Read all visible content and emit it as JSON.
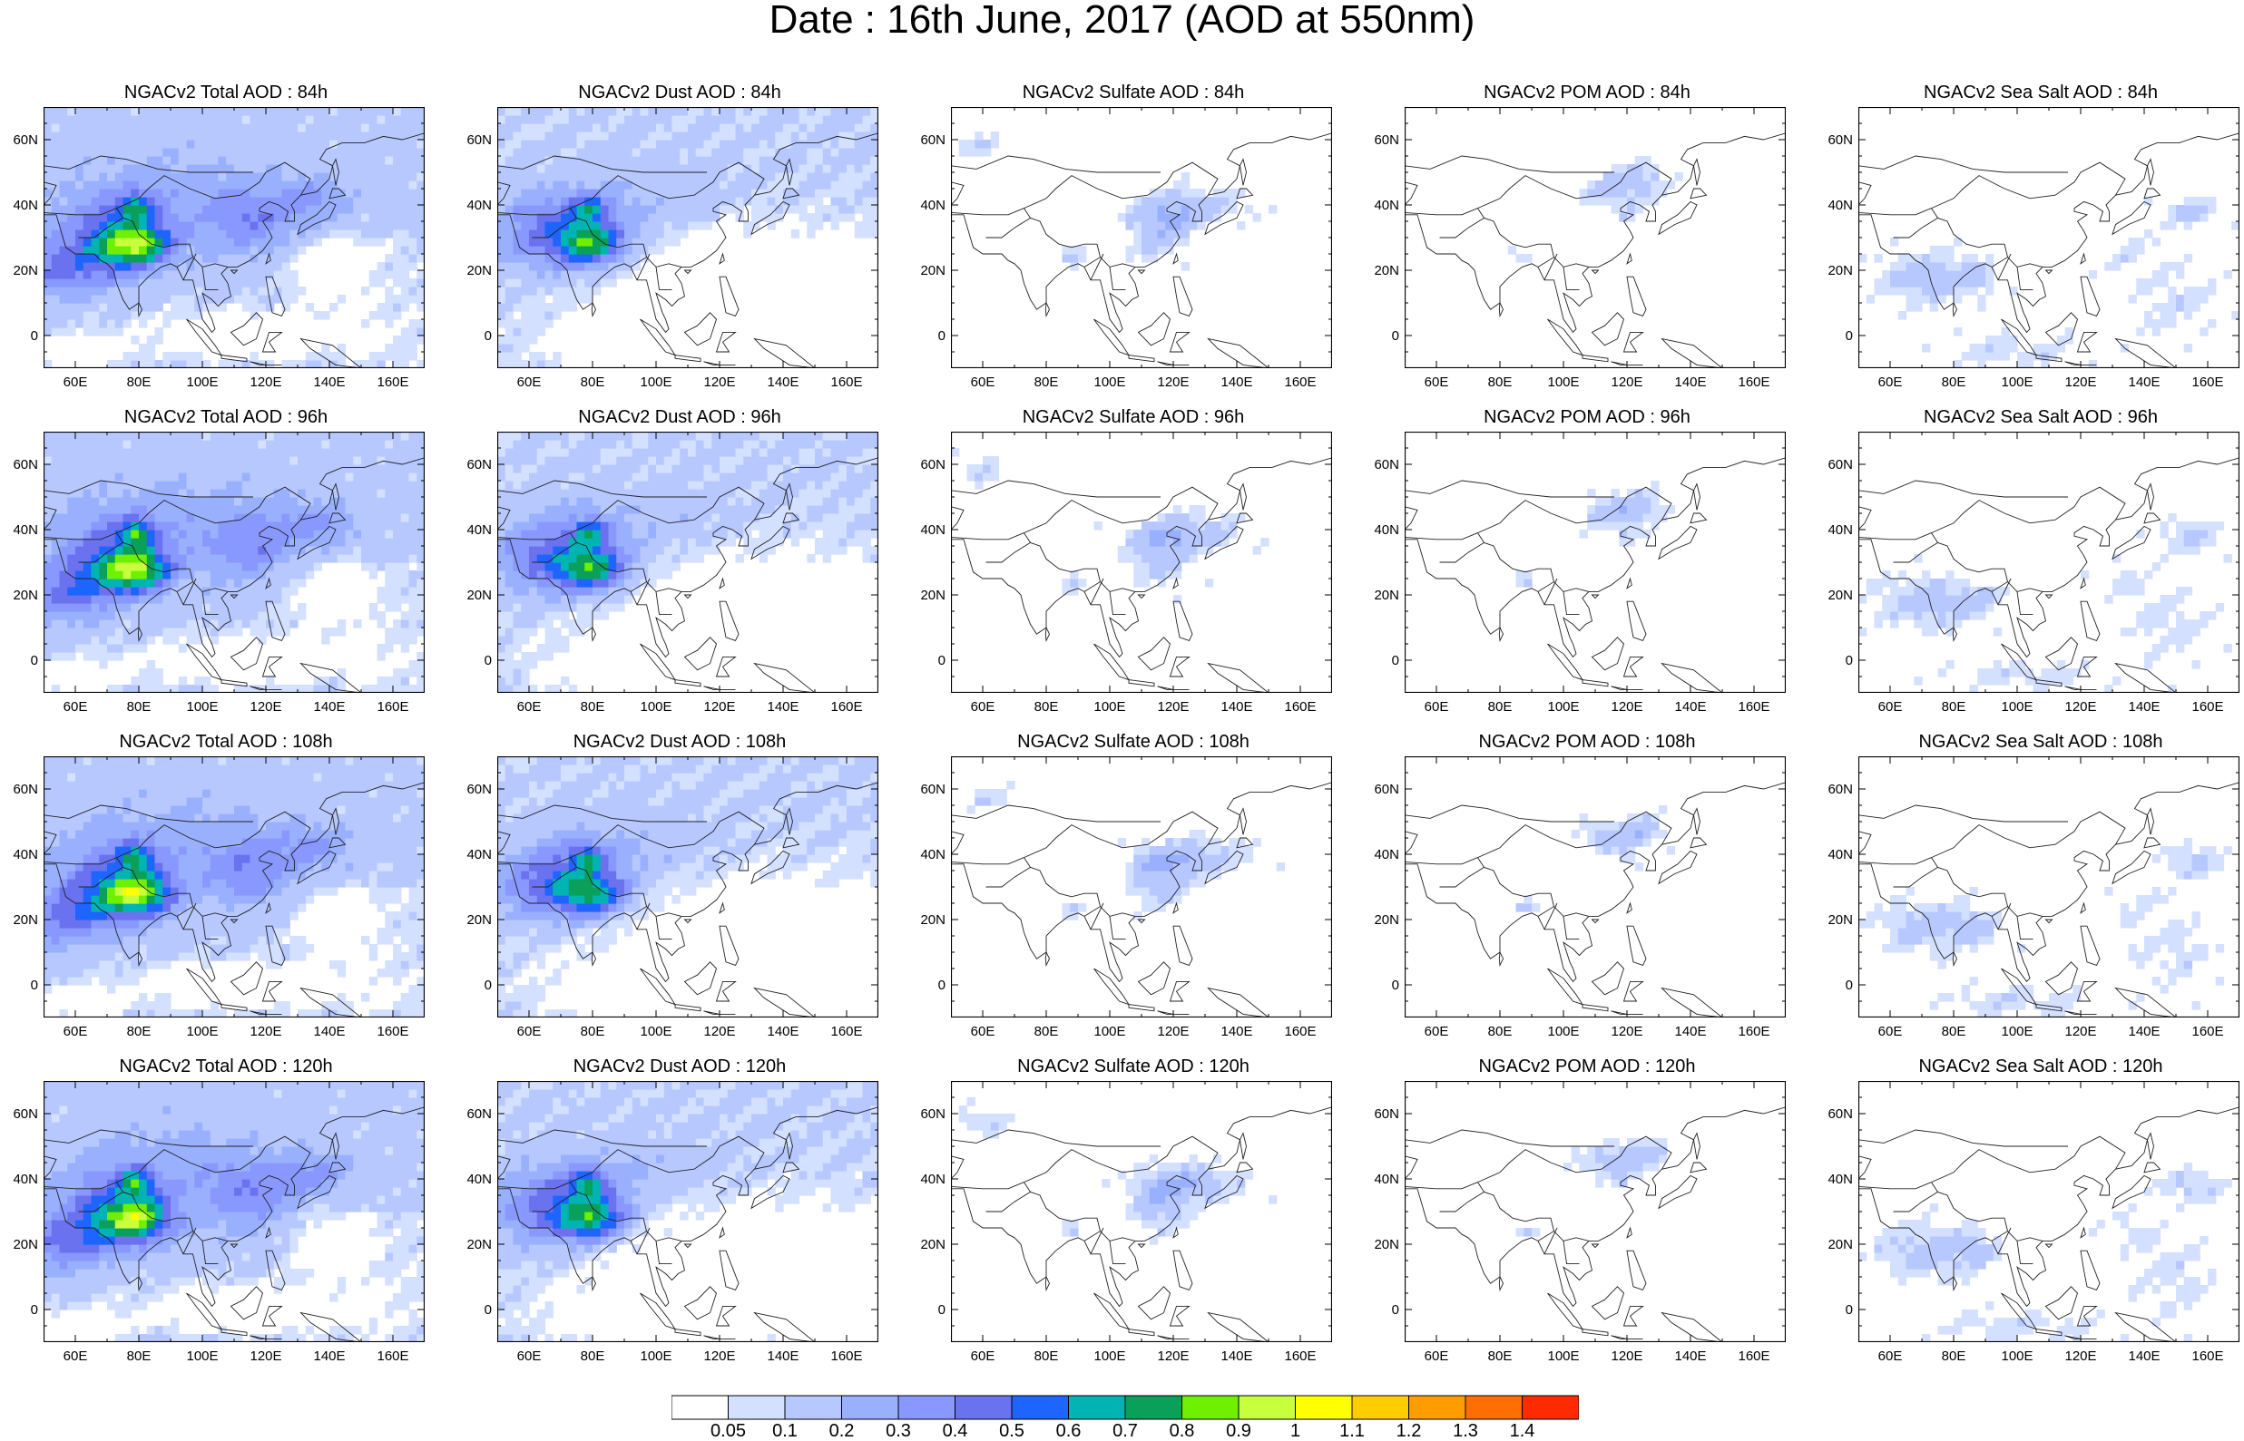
{
  "title": "Date : 16th June, 2017 (AOD at 550nm)",
  "lat_ticks": [
    "60N",
    "40N",
    "20N",
    "0"
  ],
  "lon_ticks": [
    "60E",
    "80E",
    "100E",
    "120E",
    "140E",
    "160E"
  ],
  "panels": [
    {
      "title": "NGACv2 Total AOD : 84h",
      "type": "total"
    },
    {
      "title": "NGACv2 Dust AOD : 84h",
      "type": "dust"
    },
    {
      "title": "NGACv2 Sulfate AOD : 84h",
      "type": "sulfate"
    },
    {
      "title": "NGACv2 POM AOD : 84h",
      "type": "pom"
    },
    {
      "title": "NGACv2 Sea Salt AOD : 84h",
      "type": "seasalt"
    },
    {
      "title": "NGACv2 Total AOD : 96h",
      "type": "total"
    },
    {
      "title": "NGACv2 Dust AOD : 96h",
      "type": "dust"
    },
    {
      "title": "NGACv2 Sulfate AOD : 96h",
      "type": "sulfate"
    },
    {
      "title": "NGACv2 POM AOD : 96h",
      "type": "pom"
    },
    {
      "title": "NGACv2 Sea Salt AOD : 96h",
      "type": "seasalt"
    },
    {
      "title": "NGACv2 Total AOD : 108h",
      "type": "total"
    },
    {
      "title": "NGACv2 Dust AOD : 108h",
      "type": "dust"
    },
    {
      "title": "NGACv2 Sulfate AOD : 108h",
      "type": "sulfate"
    },
    {
      "title": "NGACv2 POM AOD : 108h",
      "type": "pom"
    },
    {
      "title": "NGACv2 Sea Salt AOD : 108h",
      "type": "seasalt"
    },
    {
      "title": "NGACv2 Total AOD : 120h",
      "type": "total"
    },
    {
      "title": "NGACv2 Dust AOD : 120h",
      "type": "dust"
    },
    {
      "title": "NGACv2 Sulfate AOD : 120h",
      "type": "sulfate"
    },
    {
      "title": "NGACv2 POM AOD : 120h",
      "type": "pom"
    },
    {
      "title": "NGACv2 Sea Salt  AOD : 120h",
      "type": "seasalt"
    }
  ],
  "colorbar": {
    "labels": [
      "0.05",
      "0.1",
      "0.2",
      "0.3",
      "0.4",
      "0.5",
      "0.6",
      "0.7",
      "0.8",
      "0.9",
      "1",
      "1.1",
      "1.2",
      "1.3",
      "1.4"
    ],
    "colors": [
      "#ffffff",
      "#d4e0ff",
      "#b6c8ff",
      "#99b0ff",
      "#8898ff",
      "#6a72f0",
      "#1e64ff",
      "#00b4b4",
      "#0aa05a",
      "#6ef000",
      "#c8ff3c",
      "#ffff00",
      "#ffcc00",
      "#ff9d00",
      "#ff6e00",
      "#ff2a00"
    ]
  }
}
